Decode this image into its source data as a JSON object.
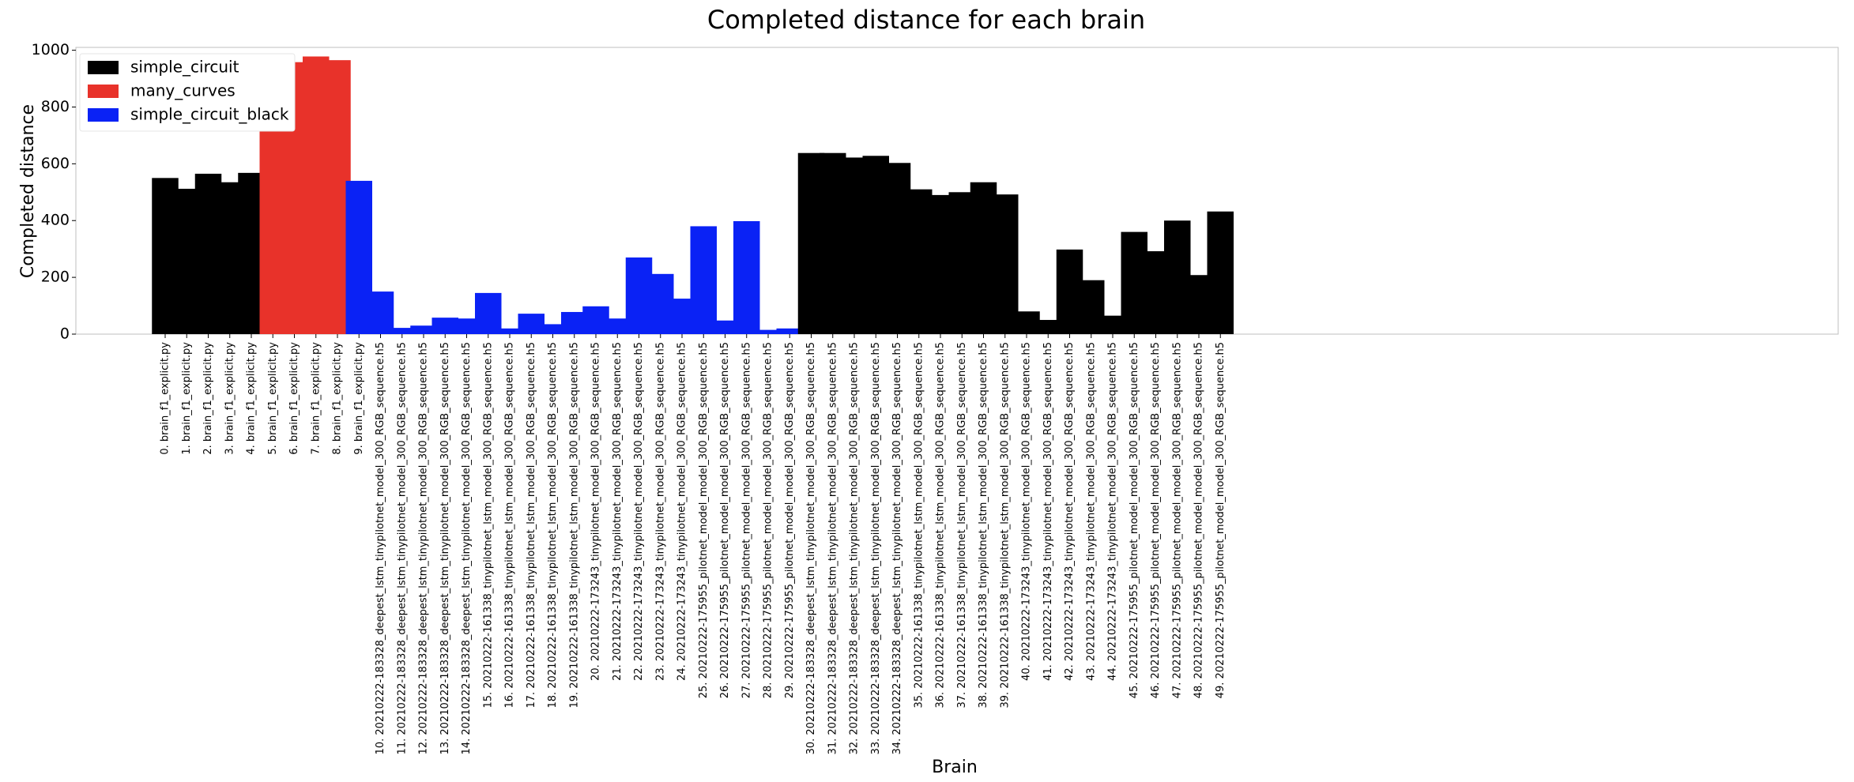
{
  "chart_data": {
    "type": "bar",
    "title": "Completed distance for each brain",
    "xlabel": "Brain",
    "ylabel": "Completed distance",
    "ylim": [
      0,
      1010
    ],
    "yticks": [
      0,
      200,
      400,
      600,
      800,
      1000
    ],
    "grid": false,
    "legend_position": "top-left",
    "legend": [
      {
        "name": "simple_circuit",
        "color": "#000000"
      },
      {
        "name": "many_curves",
        "color": "#e8322a"
      },
      {
        "name": "simple_circuit_black",
        "color": "#0a22f5"
      }
    ],
    "categories": [
      "0. brain_f1_explicit.py",
      "1. brain_f1_explicit.py",
      "2. brain_f1_explicit.py",
      "3. brain_f1_explicit.py",
      "4. brain_f1_explicit.py",
      "5. brain_f1_explicit.py",
      "6. brain_f1_explicit.py",
      "7. brain_f1_explicit.py",
      "8. brain_f1_explicit.py",
      "9. brain_f1_explicit.py",
      "10. 20210222-183328_deepest_lstm_tinypilotnet_model_300_RGB_sequence.h5",
      "11. 20210222-183328_deepest_lstm_tinypilotnet_model_300_RGB_sequence.h5",
      "12. 20210222-183328_deepest_lstm_tinypilotnet_model_300_RGB_sequence.h5",
      "13. 20210222-183328_deepest_lstm_tinypilotnet_model_300_RGB_sequence.h5",
      "14. 20210222-183328_deepest_lstm_tinypilotnet_model_300_RGB_sequence.h5",
      "15. 20210222-161338_tinypilotnet_lstm_model_300_RGB_sequence.h5",
      "16. 20210222-161338_tinypilotnet_lstm_model_300_RGB_sequence.h5",
      "17. 20210222-161338_tinypilotnet_lstm_model_300_RGB_sequence.h5",
      "18. 20210222-161338_tinypilotnet_lstm_model_300_RGB_sequence.h5",
      "19. 20210222-161338_tinypilotnet_lstm_model_300_RGB_sequence.h5",
      "20. 20210222-173243_tinypilotnet_model_300_RGB_sequence.h5",
      "21. 20210222-173243_tinypilotnet_model_300_RGB_sequence.h5",
      "22. 20210222-173243_tinypilotnet_model_300_RGB_sequence.h5",
      "23. 20210222-173243_tinypilotnet_model_300_RGB_sequence.h5",
      "24. 20210222-173243_tinypilotnet_model_300_RGB_sequence.h5",
      "25. 20210222-175955_pilotnet_model_model_300_RGB_sequence.h5",
      "26. 20210222-175955_pilotnet_model_model_300_RGB_sequence.h5",
      "27. 20210222-175955_pilotnet_model_model_300_RGB_sequence.h5",
      "28. 20210222-175955_pilotnet_model_model_300_RGB_sequence.h5",
      "29. 20210222-175955_pilotnet_model_model_300_RGB_sequence.h5",
      "30. 20210222-183328_deepest_lstm_tinypilotnet_model_300_RGB_sequence.h5",
      "31. 20210222-183328_deepest_lstm_tinypilotnet_model_300_RGB_sequence.h5",
      "32. 20210222-183328_deepest_lstm_tinypilotnet_model_300_RGB_sequence.h5",
      "33. 20210222-183328_deepest_lstm_tinypilotnet_model_300_RGB_sequence.h5",
      "34. 20210222-183328_deepest_lstm_tinypilotnet_model_300_RGB_sequence.h5",
      "35. 20210222-161338_tinypilotnet_lstm_model_300_RGB_sequence.h5",
      "36. 20210222-161338_tinypilotnet_lstm_model_300_RGB_sequence.h5",
      "37. 20210222-161338_tinypilotnet_lstm_model_300_RGB_sequence.h5",
      "38. 20210222-161338_tinypilotnet_lstm_model_300_RGB_sequence.h5",
      "39. 20210222-161338_tinypilotnet_lstm_model_300_RGB_sequence.h5",
      "40. 20210222-173243_tinypilotnet_model_300_RGB_sequence.h5",
      "41. 20210222-173243_tinypilotnet_model_300_RGB_sequence.h5",
      "42. 20210222-173243_tinypilotnet_model_300_RGB_sequence.h5",
      "43. 20210222-173243_tinypilotnet_model_300_RGB_sequence.h5",
      "44. 20210222-173243_tinypilotnet_model_300_RGB_sequence.h5",
      "45. 20210222-175955_pilotnet_model_model_300_RGB_sequence.h5",
      "46. 20210222-175955_pilotnet_model_model_300_RGB_sequence.h5",
      "47. 20210222-175955_pilotnet_model_model_300_RGB_sequence.h5",
      "48. 20210222-175955_pilotnet_model_model_300_RGB_sequence.h5",
      "49. 20210222-175955_pilotnet_model_model_300_RGB_sequence.h5"
    ],
    "values": [
      550,
      512,
      565,
      535,
      568,
      912,
      958,
      978,
      965,
      540,
      150,
      22,
      30,
      58,
      55,
      145,
      20,
      72,
      35,
      78,
      98,
      55,
      270,
      212,
      125,
      380,
      48,
      398,
      15,
      20,
      638,
      638,
      622,
      628,
      603,
      510,
      490,
      500,
      535,
      492,
      80,
      50,
      298,
      190,
      65,
      360,
      292,
      400,
      208,
      432
    ],
    "series_of_bar": [
      "simple_circuit",
      "simple_circuit",
      "simple_circuit",
      "simple_circuit",
      "simple_circuit",
      "many_curves",
      "many_curves",
      "many_curves",
      "many_curves",
      "simple_circuit_black",
      "simple_circuit_black",
      "simple_circuit_black",
      "simple_circuit_black",
      "simple_circuit_black",
      "simple_circuit_black",
      "simple_circuit_black",
      "simple_circuit_black",
      "simple_circuit_black",
      "simple_circuit_black",
      "simple_circuit_black",
      "simple_circuit_black",
      "simple_circuit_black",
      "simple_circuit_black",
      "simple_circuit_black",
      "simple_circuit_black",
      "simple_circuit_black",
      "simple_circuit_black",
      "simple_circuit_black",
      "simple_circuit_black",
      "simple_circuit_black",
      "simple_circuit",
      "simple_circuit",
      "simple_circuit",
      "simple_circuit",
      "simple_circuit",
      "simple_circuit",
      "simple_circuit",
      "simple_circuit",
      "simple_circuit",
      "simple_circuit",
      "simple_circuit",
      "simple_circuit",
      "simple_circuit",
      "simple_circuit",
      "simple_circuit",
      "simple_circuit",
      "simple_circuit",
      "simple_circuit",
      "simple_circuit",
      "simple_circuit"
    ]
  }
}
